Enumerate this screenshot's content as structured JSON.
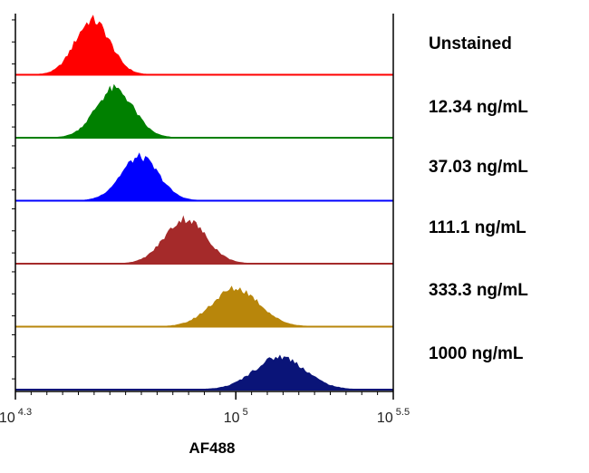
{
  "chart_data": {
    "type": "area",
    "xscale": "log10",
    "xlim": [
      4.3,
      5.5
    ],
    "xticks": [
      {
        "value": 4.3,
        "base": "10",
        "exponent": "4.3"
      },
      {
        "value": 5.0,
        "base": "10",
        "exponent": "5"
      },
      {
        "value": 5.5,
        "base": "10",
        "exponent": "5.5"
      }
    ],
    "xlabel": "AF488",
    "series": [
      {
        "name": "Unstained",
        "color": "#ff0000",
        "peak_log": 4.545,
        "width": 0.055,
        "height": 0.92
      },
      {
        "name": "12.34 ng/mL",
        "color": "#008000",
        "peak_log": 4.615,
        "width": 0.06,
        "height": 0.82
      },
      {
        "name": "37.03 ng/mL",
        "color": "#0000ff",
        "peak_log": 4.695,
        "width": 0.06,
        "height": 0.73
      },
      {
        "name": "111.1 ng/mL",
        "color": "#a52a2a",
        "peak_log": 4.84,
        "width": 0.065,
        "height": 0.75
      },
      {
        "name": "333.3 ng/mL",
        "color": "#b8860b",
        "peak_log": 5.0,
        "width": 0.075,
        "height": 0.64
      },
      {
        "name": "1000 ng/mL",
        "color": "#0a1478",
        "peak_log": 5.14,
        "width": 0.08,
        "height": 0.55
      }
    ]
  }
}
